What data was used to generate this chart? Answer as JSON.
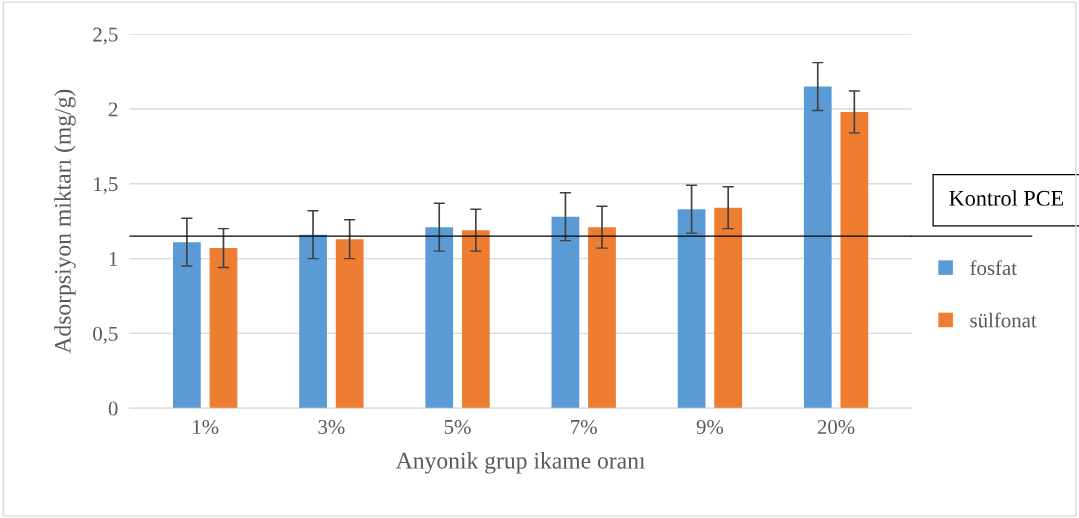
{
  "chart_data": {
    "type": "bar",
    "xlabel": "Anyonik grup ikame oranı",
    "ylabel": "Adsorpsiyon miktarı (mg/g)",
    "categories": [
      "1%",
      "3%",
      "5%",
      "7%",
      "9%",
      "20%"
    ],
    "series": [
      {
        "name": "fosfat",
        "color": "#5b9bd5",
        "values": [
          1.11,
          1.16,
          1.21,
          1.28,
          1.33,
          2.15
        ],
        "errors": [
          0.16,
          0.16,
          0.16,
          0.16,
          0.16,
          0.16
        ]
      },
      {
        "name": "sülfonat",
        "color": "#ed7d31",
        "values": [
          1.07,
          1.13,
          1.19,
          1.21,
          1.34,
          1.98
        ],
        "errors": [
          0.13,
          0.13,
          0.14,
          0.14,
          0.14,
          0.14
        ]
      }
    ],
    "ylim": [
      0,
      2.5
    ],
    "yticks": [
      0,
      {
        "value": 0.5,
        "label": "0,5"
      },
      1,
      {
        "value": 1.5,
        "label": "1,5"
      },
      2,
      {
        "value": 2.5,
        "label": "2,5"
      }
    ],
    "grid": "y",
    "legend": "right",
    "ref_lines": [
      {
        "axis": "y",
        "value": 1.15,
        "label": "Kontrol PCE",
        "color": "#000000"
      }
    ]
  }
}
